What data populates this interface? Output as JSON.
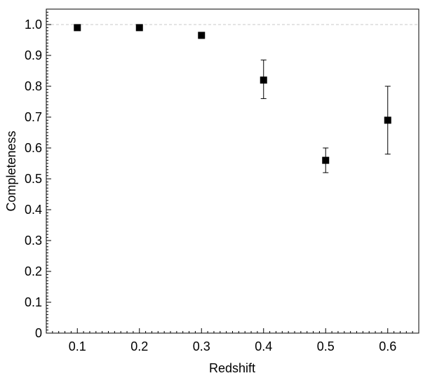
{
  "chart_data": {
    "type": "scatter",
    "title": "",
    "xlabel": "Redshift",
    "ylabel": "Completeness",
    "xlim": [
      0.05,
      0.65
    ],
    "ylim": [
      0,
      1.05
    ],
    "x_ticks": [
      0.1,
      0.2,
      0.3,
      0.4,
      0.5,
      0.6
    ],
    "x_tick_labels": [
      "0.1",
      "0.2",
      "0.3",
      "0.4",
      "0.5",
      "0.6"
    ],
    "y_ticks": [
      0,
      0.1,
      0.2,
      0.3,
      0.4,
      0.5,
      0.6,
      0.7,
      0.8,
      0.9,
      1.0
    ],
    "y_tick_labels": [
      "0",
      "0.1",
      "0.2",
      "0.3",
      "0.4",
      "0.5",
      "0.6",
      "0.7",
      "0.8",
      "0.9",
      "1.0"
    ],
    "reference_line": {
      "y": 1.0,
      "style": "dashed",
      "color": "#c8c8c8"
    },
    "grid": false,
    "legend": "none",
    "marker": "square",
    "marker_color": "#000000",
    "series": [
      {
        "points": [
          {
            "x": 0.1,
            "y": 0.99,
            "y_err_low": 0.99,
            "y_err_high": 0.99
          },
          {
            "x": 0.2,
            "y": 0.99,
            "y_err_low": 0.99,
            "y_err_high": 0.99
          },
          {
            "x": 0.3,
            "y": 0.965,
            "y_err_low": 0.955,
            "y_err_high": 0.975
          },
          {
            "x": 0.4,
            "y": 0.82,
            "y_err_low": 0.76,
            "y_err_high": 0.885
          },
          {
            "x": 0.5,
            "y": 0.56,
            "y_err_low": 0.52,
            "y_err_high": 0.6
          },
          {
            "x": 0.6,
            "y": 0.69,
            "y_err_low": 0.58,
            "y_err_high": 0.8
          }
        ]
      }
    ]
  }
}
